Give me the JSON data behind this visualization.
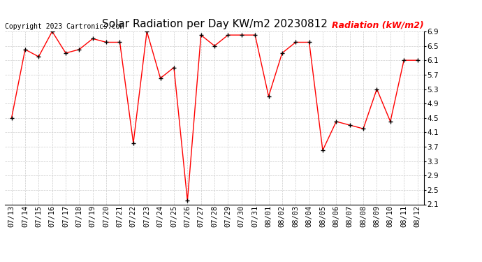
{
  "title": "Solar Radiation per Day KW/m2 20230812",
  "copyright_text": "Copyright 2023 Cartronics.com",
  "legend_label": "Radiation (kW/m2)",
  "dates": [
    "07/13",
    "07/14",
    "07/15",
    "07/16",
    "07/17",
    "07/18",
    "07/19",
    "07/20",
    "07/21",
    "07/22",
    "07/23",
    "07/24",
    "07/25",
    "07/26",
    "07/27",
    "07/28",
    "07/29",
    "07/30",
    "07/31",
    "08/01",
    "08/02",
    "08/03",
    "08/04",
    "08/05",
    "08/06",
    "08/07",
    "08/08",
    "08/09",
    "08/10",
    "08/11",
    "08/12"
  ],
  "values": [
    4.5,
    6.4,
    6.2,
    6.9,
    6.3,
    6.4,
    6.7,
    6.6,
    6.6,
    3.8,
    6.9,
    5.6,
    5.9,
    2.2,
    6.8,
    6.5,
    6.8,
    6.8,
    6.8,
    5.1,
    6.3,
    6.6,
    6.6,
    3.6,
    4.4,
    4.3,
    4.2,
    5.3,
    4.4,
    6.1,
    6.1
  ],
  "ylim": [
    2.1,
    6.9
  ],
  "yticks": [
    2.1,
    2.5,
    2.9,
    3.3,
    3.7,
    4.1,
    4.5,
    4.9,
    5.3,
    5.7,
    6.1,
    6.5,
    6.9
  ],
  "line_color": "red",
  "marker_color": "black",
  "bg_color": "#ffffff",
  "grid_color": "#cccccc",
  "title_fontsize": 11,
  "copyright_fontsize": 7,
  "legend_fontsize": 9,
  "tick_fontsize": 7.5
}
